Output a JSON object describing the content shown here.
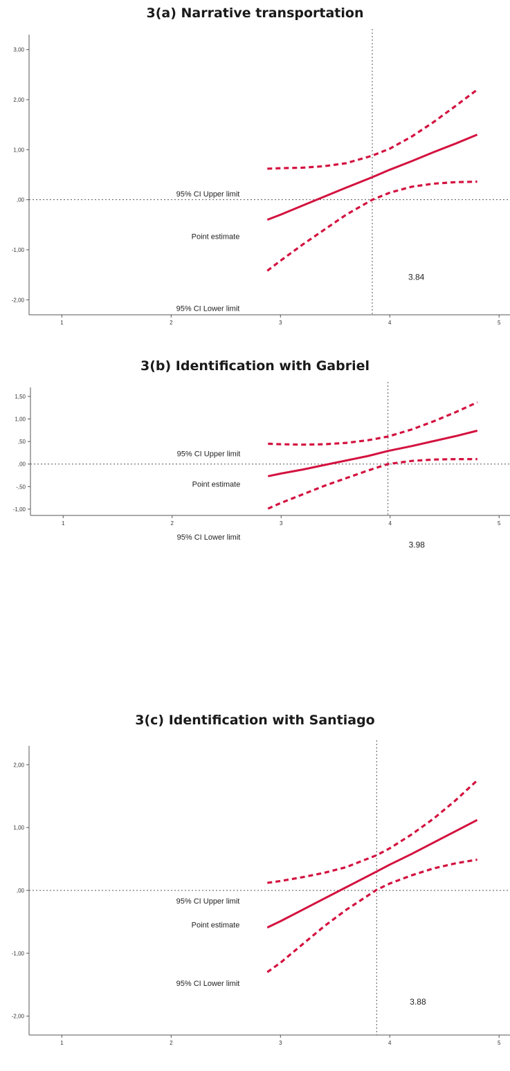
{
  "chart_data": [
    {
      "type": "line",
      "title": "3(a) Narrative transportation",
      "x": [
        2.88,
        3.0,
        3.2,
        3.4,
        3.6,
        3.84,
        4.0,
        4.2,
        4.4,
        4.6,
        4.8
      ],
      "series": [
        {
          "name": "95% CI Upper limit",
          "style": "dashed",
          "values": [
            0.62,
            0.63,
            0.64,
            0.67,
            0.73,
            0.88,
            1.02,
            1.26,
            1.55,
            1.87,
            2.2
          ]
        },
        {
          "name": "Point estimate",
          "style": "solid",
          "values": [
            -0.4,
            -0.3,
            -0.12,
            0.06,
            0.24,
            0.45,
            0.6,
            0.77,
            0.95,
            1.12,
            1.3
          ]
        },
        {
          "name": "95% CI Lower limit",
          "style": "dashed",
          "values": [
            -1.42,
            -1.22,
            -0.9,
            -0.6,
            -0.3,
            0.0,
            0.14,
            0.26,
            0.32,
            0.35,
            0.36
          ]
        }
      ],
      "xlim": [
        0.7,
        5.1
      ],
      "ylim": [
        -2.3,
        3.3
      ],
      "xticks": [
        1,
        2,
        3,
        4,
        5
      ],
      "yticks": [
        {
          "value": 3,
          "label": "3,00"
        },
        {
          "value": 2,
          "label": "2,00"
        },
        {
          "value": 1,
          "label": "1,00"
        },
        {
          "value": 0,
          "label": ",00"
        },
        {
          "value": -1,
          "label": "-1,00"
        },
        {
          "value": -2,
          "label": "-2,00"
        }
      ],
      "ref_x": 3.84,
      "ref_y": 0,
      "annotation": "3.84",
      "line_color": "#d3123f"
    },
    {
      "type": "line",
      "title": "3(b) Identification with Gabriel",
      "x": [
        2.88,
        3.0,
        3.2,
        3.4,
        3.6,
        3.8,
        3.98,
        4.2,
        4.4,
        4.6,
        4.8
      ],
      "series": [
        {
          "name": "95% CI Upper limit",
          "style": "dashed",
          "values": [
            0.45,
            0.44,
            0.43,
            0.44,
            0.47,
            0.53,
            0.61,
            0.77,
            0.95,
            1.15,
            1.37
          ]
        },
        {
          "name": "Point estimate",
          "style": "solid",
          "values": [
            -0.27,
            -0.21,
            -0.12,
            -0.02,
            0.08,
            0.18,
            0.29,
            0.4,
            0.51,
            0.62,
            0.74
          ]
        },
        {
          "name": "95% CI Lower limit",
          "style": "dashed",
          "values": [
            -0.99,
            -0.86,
            -0.67,
            -0.48,
            -0.31,
            -0.14,
            0.0,
            0.07,
            0.1,
            0.11,
            0.11
          ]
        }
      ],
      "xlim": [
        0.7,
        5.1
      ],
      "ylim": [
        -1.14,
        1.7
      ],
      "xticks": [
        1,
        2,
        3,
        4,
        5
      ],
      "yticks": [
        {
          "value": 1.5,
          "label": "1,50"
        },
        {
          "value": 1,
          "label": "1,00"
        },
        {
          "value": 0.5,
          "label": ",50"
        },
        {
          "value": 0,
          "label": ",00"
        },
        {
          "value": -0.5,
          "label": "-,50"
        },
        {
          "value": -1,
          "label": "-1,00"
        }
      ],
      "ref_x": 3.98,
      "ref_y": 0,
      "annotation": "3.98",
      "line_color": "#d3123f"
    },
    {
      "type": "line",
      "title": "3(c) Identification with Santiago",
      "x": [
        2.88,
        3.0,
        3.2,
        3.4,
        3.6,
        3.88,
        4.0,
        4.2,
        4.4,
        4.6,
        4.8
      ],
      "series": [
        {
          "name": "95% CI Upper limit",
          "style": "dashed",
          "values": [
            0.12,
            0.15,
            0.21,
            0.28,
            0.37,
            0.56,
            0.67,
            0.89,
            1.14,
            1.43,
            1.75
          ]
        },
        {
          "name": "Point estimate",
          "style": "solid",
          "values": [
            -0.59,
            -0.49,
            -0.31,
            -0.13,
            0.05,
            0.3,
            0.41,
            0.58,
            0.76,
            0.94,
            1.12
          ]
        },
        {
          "name": "95% CI Lower limit",
          "style": "dashed",
          "values": [
            -1.3,
            -1.15,
            -0.86,
            -0.57,
            -0.31,
            0.01,
            0.11,
            0.24,
            0.35,
            0.43,
            0.49
          ]
        }
      ],
      "xlim": [
        0.7,
        5.1
      ],
      "ylim": [
        -2.3,
        2.3
      ],
      "xticks": [
        1,
        2,
        3,
        4,
        5
      ],
      "yticks": [
        {
          "value": 2,
          "label": "2,00"
        },
        {
          "value": 1,
          "label": "1,00"
        },
        {
          "value": 0,
          "label": ",00"
        },
        {
          "value": -1,
          "label": "-1,00"
        },
        {
          "value": -2,
          "label": "-2,00"
        }
      ],
      "ref_x": 3.88,
      "ref_y": 0,
      "annotation": "3.88",
      "line_color": "#d3123f"
    }
  ]
}
